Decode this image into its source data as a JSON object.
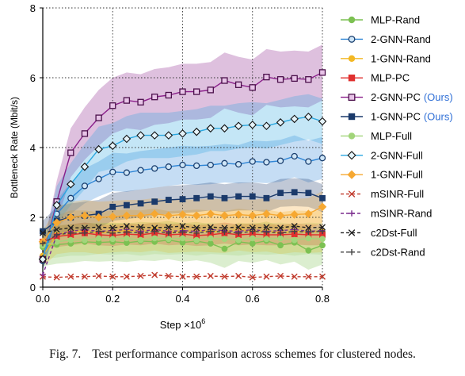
{
  "chart_data": {
    "type": "line",
    "xlabel": "Step ×10",
    "xlabel_exponent": "6",
    "ylabel": "Bottleneck Rate (Mbit/s)",
    "xlim": [
      0,
      0.8
    ],
    "ylim": [
      0,
      8
    ],
    "xticks": [
      "0.0",
      "0.2",
      "0.4",
      "0.6",
      "0.8"
    ],
    "yticks": [
      "0",
      "2",
      "4",
      "6",
      "8"
    ],
    "grid": "dotted",
    "legend_position": "right",
    "x": [
      0,
      0.04,
      0.08,
      0.12,
      0.16,
      0.2,
      0.24,
      0.28,
      0.32,
      0.36,
      0.4,
      0.44,
      0.48,
      0.52,
      0.56,
      0.6,
      0.64,
      0.68,
      0.72,
      0.76,
      0.8
    ],
    "series": [
      {
        "name": "MLP-Rand",
        "suffix": "",
        "color": "#7cc152",
        "marker": "circle",
        "values": [
          1.15,
          1.22,
          1.25,
          1.3,
          1.28,
          1.3,
          1.27,
          1.32,
          1.3,
          1.35,
          1.28,
          1.32,
          1.25,
          1.1,
          1.3,
          1.25,
          1.33,
          1.2,
          1.28,
          1.05,
          1.2
        ],
        "band": [
          0.55,
          0.55,
          0.55,
          0.55,
          0.55,
          0.55,
          0.55,
          0.55,
          0.55,
          0.55,
          0.55,
          0.55,
          0.55,
          0.55,
          0.55,
          0.55,
          0.55,
          0.55,
          0.55,
          0.55,
          0.55
        ]
      },
      {
        "name": "2-GNN-Rand",
        "suffix": "",
        "color": "#2f86d6",
        "marker": "circle-open",
        "values": [
          0.75,
          2.1,
          2.55,
          2.9,
          3.1,
          3.3,
          3.28,
          3.35,
          3.4,
          3.45,
          3.5,
          3.48,
          3.5,
          3.55,
          3.52,
          3.6,
          3.58,
          3.62,
          3.75,
          3.6,
          3.7
        ],
        "band": [
          0.25,
          0.4,
          0.45,
          0.5,
          0.5,
          0.55,
          0.55,
          0.55,
          0.55,
          0.55,
          0.55,
          0.55,
          0.55,
          0.55,
          0.55,
          0.6,
          0.6,
          0.6,
          0.6,
          0.6,
          0.6
        ]
      },
      {
        "name": "1-GNN-Rand",
        "suffix": "",
        "color": "#f3b824",
        "marker": "circle",
        "values": [
          0.9,
          1.5,
          1.6,
          1.6,
          1.55,
          1.6,
          1.62,
          1.6,
          1.65,
          1.58,
          1.6,
          1.62,
          1.6,
          1.58,
          1.65,
          1.6,
          1.62,
          1.55,
          1.6,
          1.58,
          1.6
        ],
        "band": [
          0.3,
          0.55,
          0.6,
          0.6,
          0.6,
          0.6,
          0.6,
          0.6,
          0.6,
          0.6,
          0.6,
          0.6,
          0.6,
          0.6,
          0.6,
          0.6,
          0.6,
          0.6,
          0.6,
          0.6,
          0.6
        ]
      },
      {
        "name": "MLP-PC",
        "suffix": "",
        "color": "#e0302f",
        "marker": "square",
        "values": [
          1.3,
          1.45,
          1.5,
          1.55,
          1.5,
          1.48,
          1.52,
          1.5,
          1.55,
          1.5,
          1.52,
          1.48,
          1.5,
          1.55,
          1.5,
          1.52,
          1.5,
          1.5,
          1.52,
          1.5,
          1.5
        ],
        "band": [
          0.2,
          0.3,
          0.3,
          0.3,
          0.3,
          0.3,
          0.3,
          0.3,
          0.3,
          0.3,
          0.3,
          0.3,
          0.3,
          0.3,
          0.3,
          0.3,
          0.3,
          0.3,
          0.3,
          0.3,
          0.3
        ]
      },
      {
        "name": "2-GNN-PC",
        "suffix": "(Ours)",
        "color": "#8a1e8a",
        "marker": "square-open",
        "values": [
          0.8,
          2.45,
          3.85,
          4.4,
          4.85,
          5.2,
          5.35,
          5.3,
          5.45,
          5.5,
          5.6,
          5.6,
          5.65,
          5.92,
          5.8,
          5.72,
          6.02,
          5.95,
          5.98,
          5.95,
          6.15
        ],
        "band": [
          0.3,
          0.6,
          0.7,
          0.75,
          0.8,
          0.8,
          0.8,
          0.8,
          0.8,
          0.8,
          0.8,
          0.8,
          0.8,
          0.8,
          0.8,
          0.8,
          0.8,
          0.8,
          0.8,
          0.8,
          0.8
        ]
      },
      {
        "name": "1-GNN-PC",
        "suffix": "(Ours)",
        "color": "#1b3a6b",
        "marker": "square",
        "values": [
          1.6,
          1.9,
          2.0,
          2.05,
          2.1,
          2.3,
          2.35,
          2.4,
          2.45,
          2.5,
          2.52,
          2.55,
          2.6,
          2.55,
          2.6,
          2.6,
          2.55,
          2.7,
          2.72,
          2.7,
          2.55
        ],
        "band": [
          0.3,
          0.4,
          0.4,
          0.4,
          0.4,
          0.4,
          0.4,
          0.4,
          0.4,
          0.4,
          0.4,
          0.4,
          0.4,
          0.4,
          0.4,
          0.4,
          0.4,
          0.4,
          0.4,
          0.4,
          0.4
        ]
      },
      {
        "name": "MLP-Full",
        "suffix": "",
        "color": "#a2d57a",
        "marker": "circle",
        "values": [
          1.2,
          1.3,
          1.35,
          1.35,
          1.4,
          1.38,
          1.4,
          1.35,
          1.4,
          1.38,
          1.4,
          1.35,
          1.4,
          1.38,
          1.35,
          1.4,
          1.38,
          1.4,
          1.35,
          1.4,
          1.38
        ],
        "band": [
          0.4,
          0.45,
          0.45,
          0.45,
          0.45,
          0.45,
          0.45,
          0.45,
          0.45,
          0.45,
          0.45,
          0.45,
          0.45,
          0.45,
          0.45,
          0.45,
          0.45,
          0.45,
          0.45,
          0.45,
          0.45
        ]
      },
      {
        "name": "2-GNN-Full",
        "suffix": "",
        "color": "#2aa7e0",
        "marker": "diamond",
        "values": [
          0.8,
          2.35,
          2.95,
          3.45,
          3.95,
          4.05,
          4.25,
          4.35,
          4.35,
          4.35,
          4.4,
          4.45,
          4.55,
          4.55,
          4.62,
          4.65,
          4.62,
          4.72,
          4.82,
          4.88,
          4.75
        ],
        "band": [
          0.3,
          0.55,
          0.6,
          0.65,
          0.65,
          0.65,
          0.65,
          0.65,
          0.65,
          0.65,
          0.65,
          0.65,
          0.65,
          0.65,
          0.65,
          0.65,
          0.65,
          0.65,
          0.65,
          0.65,
          0.65
        ]
      },
      {
        "name": "1-GNN-Full",
        "suffix": "",
        "color": "#f6a832",
        "marker": "diamond",
        "values": [
          1.3,
          1.85,
          2.0,
          2.05,
          2.0,
          2.02,
          2.05,
          2.05,
          2.1,
          2.05,
          2.08,
          2.05,
          2.1,
          2.05,
          2.08,
          2.05,
          2.1,
          2.05,
          2.08,
          2.1,
          2.3
        ],
        "band": [
          0.3,
          0.45,
          0.45,
          0.45,
          0.45,
          0.45,
          0.45,
          0.45,
          0.45,
          0.45,
          0.45,
          0.45,
          0.45,
          0.45,
          0.45,
          0.45,
          0.45,
          0.45,
          0.45,
          0.45,
          0.45
        ]
      },
      {
        "name": "mSINR-Full",
        "suffix": "",
        "color": "#c0392b",
        "marker": "x",
        "values": [
          0.3,
          0.28,
          0.3,
          0.3,
          0.32,
          0.3,
          0.3,
          0.32,
          0.35,
          0.32,
          0.3,
          0.3,
          0.32,
          0.3,
          0.32,
          0.28,
          0.3,
          0.32,
          0.3,
          0.3,
          0.3
        ],
        "band": []
      },
      {
        "name": "mSINR-Rand",
        "suffix": "",
        "color": "#7b2d8e",
        "marker": "plus",
        "values": [
          0.35,
          1.5,
          1.6,
          1.65,
          1.6,
          1.62,
          1.65,
          1.6,
          1.65,
          1.6,
          1.62,
          1.6,
          1.65,
          1.62,
          1.6,
          1.65,
          1.6,
          1.62,
          1.65,
          1.6,
          1.62
        ],
        "band": []
      },
      {
        "name": "c2Dst-Full",
        "suffix": "",
        "color": "#222222",
        "marker": "x",
        "values": [
          1.55,
          1.65,
          1.7,
          1.7,
          1.72,
          1.7,
          1.75,
          1.72,
          1.7,
          1.72,
          1.75,
          1.7,
          1.72,
          1.7,
          1.72,
          1.7,
          1.72,
          1.7,
          1.75,
          1.7,
          1.72
        ],
        "band": []
      },
      {
        "name": "c2Dst-Rand",
        "suffix": "",
        "color": "#444444",
        "marker": "plus",
        "values": [
          1.25,
          1.5,
          1.55,
          1.55,
          1.6,
          1.55,
          1.58,
          1.55,
          1.6,
          1.55,
          1.58,
          1.55,
          1.6,
          1.58,
          1.55,
          1.6,
          1.58,
          1.55,
          1.6,
          1.58,
          1.6
        ],
        "band": []
      }
    ]
  },
  "caption": {
    "label": "Fig. 7.",
    "text": "Test performance comparison across schemes for clustered nodes."
  }
}
